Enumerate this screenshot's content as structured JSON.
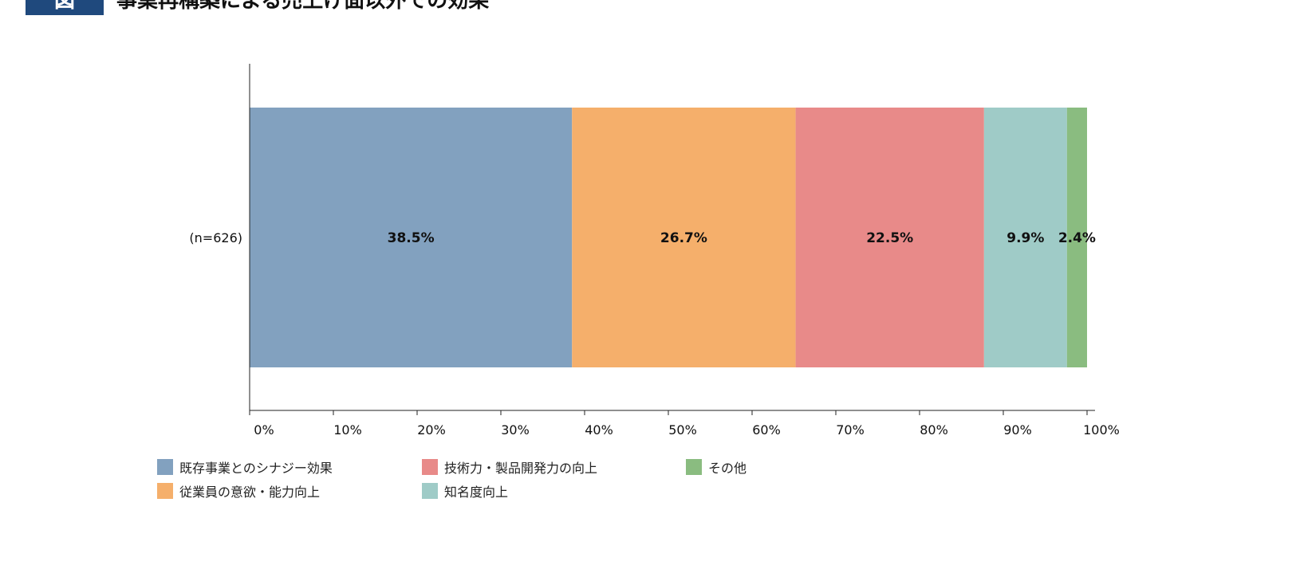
{
  "figure_label": "図",
  "chart_data": {
    "type": "bar",
    "orientation": "horizontal-stacked-100",
    "title": "事業再構築による売上げ面以外での効果",
    "categories": [
      "(n=626)"
    ],
    "series": [
      {
        "name": "既存事業とのシナジー効果",
        "values": [
          38.5
        ],
        "label": "38.5%",
        "color": "#82a1bf"
      },
      {
        "name": "従業員の意欲・能力向上",
        "values": [
          26.7
        ],
        "label": "26.7%",
        "color": "#f5af6b"
      },
      {
        "name": "技術力・製品開発力の向上",
        "values": [
          22.5
        ],
        "label": "22.5%",
        "color": "#e88a89"
      },
      {
        "name": "知名度向上",
        "values": [
          9.9
        ],
        "label": "9.9%",
        "color": "#9fcbc7"
      },
      {
        "name": "その他",
        "values": [
          2.4
        ],
        "label": "2.4%",
        "color": "#8abc80"
      }
    ],
    "xlim": [
      0,
      100
    ],
    "xticks": [
      "0%",
      "10%",
      "20%",
      "30%",
      "40%",
      "50%",
      "60%",
      "70%",
      "80%",
      "90%",
      "100%"
    ],
    "grid": false,
    "legend_placement": "bottom"
  }
}
